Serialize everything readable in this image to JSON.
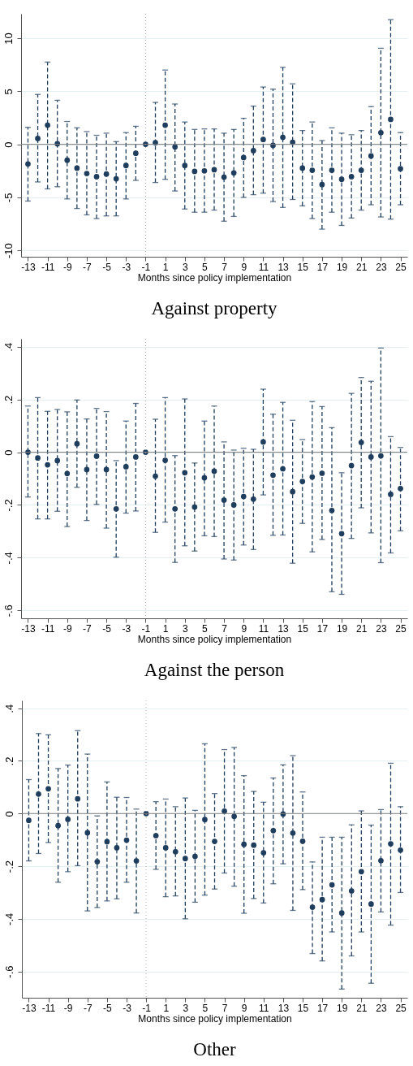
{
  "chart_data": [
    {
      "type": "scatter",
      "title": "Against property",
      "xlabel": "Months since policy implementation",
      "color": "#1f3d5c",
      "marker": "circle",
      "line_style": "dashed",
      "grid": "y",
      "x": [
        -13,
        -12,
        -11,
        -10,
        -9,
        -8,
        -7,
        -6,
        -5,
        -4,
        -3,
        -2,
        -1,
        0,
        1,
        2,
        3,
        4,
        5,
        6,
        7,
        8,
        9,
        10,
        11,
        12,
        13,
        14,
        15,
        16,
        17,
        18,
        19,
        20,
        21,
        22,
        23,
        24,
        25
      ],
      "values": [
        -1.85,
        0.55,
        1.8,
        0.05,
        -1.5,
        -2.25,
        -2.75,
        -3.05,
        -2.8,
        -3.25,
        -2.0,
        -0.85,
        0,
        0.15,
        1.8,
        -0.25,
        -2.0,
        -2.55,
        -2.5,
        -2.4,
        -3.1,
        -2.7,
        -1.25,
        -0.6,
        0.45,
        -0.1,
        0.65,
        0.2,
        -2.25,
        -2.45,
        -3.8,
        -2.45,
        -3.3,
        -3.05,
        -2.45,
        -1.1,
        1.1,
        2.35,
        -2.3
      ],
      "errors": [
        [
          -5.35,
          1.6
        ],
        [
          -3.55,
          4.7
        ],
        [
          -4.2,
          7.75
        ],
        [
          -4.0,
          4.15
        ],
        [
          -5.15,
          2.15
        ],
        [
          -6.05,
          1.55
        ],
        [
          -6.65,
          1.2
        ],
        [
          -7.0,
          0.85
        ],
        [
          -6.75,
          1.05
        ],
        [
          -6.75,
          0.25
        ],
        [
          -5.15,
          1.1
        ],
        [
          -3.4,
          1.7
        ],
        null,
        [
          -3.6,
          3.95
        ],
        [
          -3.3,
          7.0
        ],
        [
          -4.4,
          3.8
        ],
        [
          -6.1,
          2.1
        ],
        [
          -6.4,
          1.4
        ],
        [
          -6.4,
          1.45
        ],
        [
          -6.2,
          1.45
        ],
        [
          -7.25,
          1.05
        ],
        [
          -6.8,
          1.4
        ],
        [
          -5.0,
          2.45
        ],
        [
          -4.75,
          3.6
        ],
        [
          -4.6,
          5.4
        ],
        [
          -5.4,
          5.2
        ],
        [
          -5.95,
          7.25
        ],
        [
          -5.2,
          5.7
        ],
        [
          -5.8,
          1.3
        ],
        [
          -7.0,
          2.1
        ],
        [
          -8.0,
          0.35
        ],
        [
          -6.4,
          1.55
        ],
        [
          -7.65,
          1.05
        ],
        [
          -6.95,
          0.9
        ],
        [
          -6.2,
          1.3
        ],
        [
          -5.7,
          3.55
        ],
        [
          -6.85,
          9.05
        ],
        [
          -7.05,
          11.75
        ],
        [
          -5.7,
          1.1
        ]
      ],
      "xlim": [
        -13.7,
        25.7
      ],
      "xticks": [
        -13,
        -11,
        -9,
        -7,
        -5,
        -3,
        -1,
        1,
        3,
        5,
        7,
        9,
        11,
        13,
        15,
        17,
        19,
        21,
        23,
        25
      ],
      "ylim": [
        -10.6,
        12.3
      ],
      "yticks": [
        -10,
        -5,
        0,
        5,
        10
      ],
      "ref_lines": [
        {
          "axis": "y",
          "value": 0,
          "color": "#808080",
          "line_style": "solid"
        },
        {
          "axis": "x",
          "value": -1,
          "color": "#b0b0b0",
          "line_style": "dotted"
        }
      ]
    },
    {
      "type": "scatter",
      "title": "Against the person",
      "xlabel": "Months since policy implementation",
      "color": "#1f3d5c",
      "marker": "circle",
      "line_style": "dashed",
      "grid": "y",
      "x": [
        -13,
        -12,
        -11,
        -10,
        -9,
        -8,
        -7,
        -6,
        -5,
        -4,
        -3,
        -2,
        -1,
        0,
        1,
        2,
        3,
        4,
        5,
        6,
        7,
        8,
        9,
        10,
        11,
        12,
        13,
        14,
        15,
        16,
        17,
        18,
        19,
        20,
        21,
        22,
        23,
        24,
        25
      ],
      "values": [
        0.0,
        -0.022,
        -0.048,
        -0.032,
        -0.081,
        0.032,
        -0.066,
        -0.015,
        -0.066,
        -0.215,
        -0.055,
        -0.018,
        0,
        -0.091,
        -0.031,
        -0.215,
        -0.078,
        -0.208,
        -0.097,
        -0.072,
        -0.182,
        -0.2,
        -0.168,
        -0.178,
        0.039,
        -0.087,
        -0.063,
        -0.15,
        -0.111,
        -0.094,
        -0.08,
        -0.221,
        -0.309,
        -0.051,
        0.037,
        -0.018,
        -0.014,
        -0.16,
        -0.138
      ],
      "errors": [
        [
          -0.17,
          0.175
        ],
        [
          -0.253,
          0.207
        ],
        [
          -0.253,
          0.155
        ],
        [
          -0.224,
          0.162
        ],
        [
          -0.282,
          0.153
        ],
        [
          -0.133,
          0.198
        ],
        [
          -0.259,
          0.126
        ],
        [
          -0.198,
          0.166
        ],
        [
          -0.288,
          0.154
        ],
        [
          -0.398,
          -0.032
        ],
        [
          -0.231,
          0.118
        ],
        [
          -0.223,
          0.185
        ],
        null,
        [
          -0.304,
          0.125
        ],
        [
          -0.265,
          0.207
        ],
        [
          -0.418,
          -0.013
        ],
        [
          -0.355,
          0.202
        ],
        [
          -0.375,
          -0.041
        ],
        [
          -0.317,
          0.118
        ],
        [
          -0.32,
          0.175
        ],
        [
          -0.405,
          0.039
        ],
        [
          -0.409,
          0.008
        ],
        [
          -0.352,
          0.015
        ],
        [
          -0.369,
          0.011
        ],
        [
          -0.162,
          0.239
        ],
        [
          -0.315,
          0.144
        ],
        [
          -0.314,
          0.189
        ],
        [
          -0.421,
          0.121
        ],
        [
          -0.27,
          0.048
        ],
        [
          -0.378,
          0.192
        ],
        [
          -0.331,
          0.173
        ],
        [
          -0.529,
          0.093
        ],
        [
          -0.539,
          -0.078
        ],
        [
          -0.327,
          0.223
        ],
        [
          -0.211,
          0.283
        ],
        [
          -0.306,
          0.269
        ],
        [
          -0.419,
          0.395
        ],
        [
          -0.382,
          0.059
        ],
        [
          -0.298,
          0.018
        ]
      ],
      "xlim": [
        -13.7,
        25.7
      ],
      "xticks": [
        -13,
        -11,
        -9,
        -7,
        -5,
        -3,
        -1,
        1,
        3,
        5,
        7,
        9,
        11,
        13,
        15,
        17,
        19,
        21,
        23,
        25
      ],
      "ylim": [
        -0.63,
        0.43
      ],
      "yticks": [
        {
          "value": -0.6,
          "label": "-.6"
        },
        {
          "value": -0.4,
          "label": "-.4"
        },
        {
          "value": -0.2,
          "label": "-.2"
        },
        0,
        {
          "value": 0.2,
          "label": ".2"
        },
        {
          "value": 0.4,
          "label": ".4"
        }
      ],
      "ref_lines": [
        {
          "axis": "y",
          "value": 0,
          "color": "#808080",
          "line_style": "solid"
        },
        {
          "axis": "x",
          "value": -1,
          "color": "#b0b0b0",
          "line_style": "dotted"
        }
      ]
    },
    {
      "type": "scatter",
      "title": "Other",
      "xlabel": "Months since policy implementation",
      "color": "#1f3d5c",
      "marker": "circle",
      "line_style": "dashed",
      "grid": "y",
      "x": [
        -13,
        -12,
        -11,
        -10,
        -9,
        -8,
        -7,
        -6,
        -5,
        -4,
        -3,
        -2,
        -1,
        0,
        1,
        2,
        3,
        4,
        5,
        6,
        7,
        8,
        9,
        10,
        11,
        12,
        13,
        14,
        15,
        16,
        17,
        18,
        19,
        20,
        21,
        22,
        23,
        24,
        25
      ],
      "values": [
        -0.026,
        0.074,
        0.094,
        -0.046,
        -0.022,
        0.056,
        -0.073,
        -0.183,
        -0.107,
        -0.13,
        -0.101,
        -0.18,
        0,
        -0.084,
        -0.13,
        -0.145,
        -0.171,
        -0.163,
        -0.023,
        -0.106,
        0.009,
        -0.011,
        -0.117,
        -0.12,
        -0.149,
        -0.065,
        -0.002,
        -0.074,
        -0.105,
        -0.356,
        -0.327,
        -0.271,
        -0.378,
        -0.294,
        -0.221,
        -0.344,
        -0.179,
        -0.115,
        -0.139
      ],
      "errors": [
        [
          -0.18,
          0.129
        ],
        [
          -0.152,
          0.304
        ],
        [
          -0.11,
          0.299
        ],
        [
          -0.261,
          0.171
        ],
        [
          -0.221,
          0.184
        ],
        [
          -0.198,
          0.315
        ],
        [
          -0.37,
          0.226
        ],
        [
          -0.357,
          -0.009
        ],
        [
          -0.332,
          0.12
        ],
        [
          -0.324,
          0.062
        ],
        [
          -0.261,
          0.061
        ],
        [
          -0.378,
          0.017
        ],
        null,
        [
          -0.212,
          0.045
        ],
        [
          -0.316,
          0.055
        ],
        [
          -0.313,
          0.026
        ],
        [
          -0.4,
          0.059
        ],
        [
          -0.337,
          0.012
        ],
        [
          -0.31,
          0.265
        ],
        [
          -0.287,
          0.076
        ],
        [
          -0.226,
          0.243
        ],
        [
          -0.276,
          0.251
        ],
        [
          -0.379,
          0.144
        ],
        [
          -0.323,
          0.084
        ],
        [
          -0.34,
          0.043
        ],
        [
          -0.267,
          0.135
        ],
        [
          -0.191,
          0.185
        ],
        [
          -0.368,
          0.22
        ],
        [
          -0.289,
          0.082
        ],
        [
          -0.532,
          -0.184
        ],
        [
          -0.56,
          -0.09
        ],
        [
          -0.45,
          -0.09
        ],
        [
          -0.667,
          -0.09
        ],
        [
          -0.541,
          -0.043
        ],
        [
          -0.45,
          0.01
        ],
        [
          -0.645,
          -0.044
        ],
        [
          -0.374,
          0.015
        ],
        [
          -0.424,
          0.191
        ],
        [
          -0.3,
          0.026
        ]
      ],
      "xlim": [
        -13.7,
        25.7
      ],
      "xticks": [
        -13,
        -11,
        -9,
        -7,
        -5,
        -3,
        -1,
        1,
        3,
        5,
        7,
        9,
        11,
        13,
        15,
        17,
        19,
        21,
        23,
        25
      ],
      "ylim": [
        -0.7,
        0.43
      ],
      "yticks": [
        {
          "value": -0.6,
          "label": "-.6"
        },
        {
          "value": -0.4,
          "label": "-.4"
        },
        {
          "value": -0.2,
          "label": "-.2"
        },
        0,
        {
          "value": 0.2,
          "label": ".2"
        },
        {
          "value": 0.4,
          "label": ".4"
        }
      ],
      "ref_lines": [
        {
          "axis": "y",
          "value": 0,
          "color": "#808080",
          "line_style": "solid"
        },
        {
          "axis": "x",
          "value": -1,
          "color": "#b0b0b0",
          "line_style": "dotted"
        }
      ]
    }
  ]
}
